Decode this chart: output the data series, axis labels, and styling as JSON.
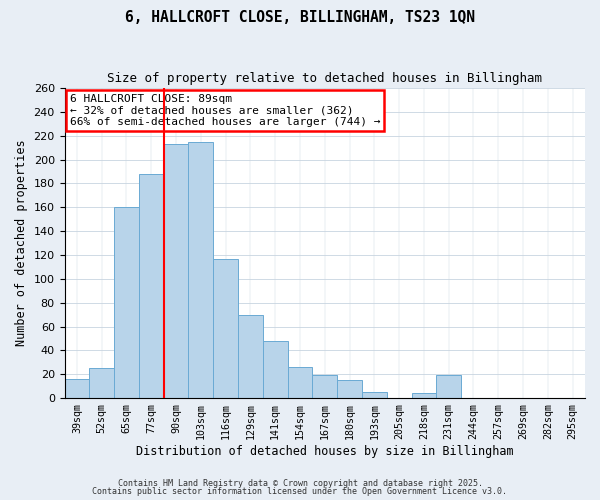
{
  "title": "6, HALLCROFT CLOSE, BILLINGHAM, TS23 1QN",
  "subtitle": "Size of property relative to detached houses in Billingham",
  "xlabel": "Distribution of detached houses by size in Billingham",
  "ylabel": "Number of detached properties",
  "bar_labels": [
    "39sqm",
    "52sqm",
    "65sqm",
    "77sqm",
    "90sqm",
    "103sqm",
    "116sqm",
    "129sqm",
    "141sqm",
    "154sqm",
    "167sqm",
    "180sqm",
    "193sqm",
    "205sqm",
    "218sqm",
    "231sqm",
    "244sqm",
    "257sqm",
    "269sqm",
    "282sqm",
    "295sqm"
  ],
  "bar_values": [
    16,
    25,
    160,
    188,
    213,
    215,
    117,
    70,
    48,
    26,
    19,
    15,
    5,
    0,
    4,
    19,
    0,
    0,
    0,
    0,
    0
  ],
  "bar_color": "#b8d4ea",
  "bar_edge_color": "#6aaad4",
  "ylim": [
    0,
    260
  ],
  "yticks": [
    0,
    20,
    40,
    60,
    80,
    100,
    120,
    140,
    160,
    180,
    200,
    220,
    240,
    260
  ],
  "vline_x_index": 4,
  "vline_color": "red",
  "annotation_title": "6 HALLCROFT CLOSE: 89sqm",
  "annotation_line1": "← 32% of detached houses are smaller (362)",
  "annotation_line2": "66% of semi-detached houses are larger (744) →",
  "annotation_box_color": "#ffffff",
  "annotation_box_edge_color": "red",
  "footer1": "Contains HM Land Registry data © Crown copyright and database right 2025.",
  "footer2": "Contains public sector information licensed under the Open Government Licence v3.0.",
  "bg_color": "#e8eef5",
  "plot_bg_color": "#ffffff",
  "grid_color": "#c8d4e0"
}
